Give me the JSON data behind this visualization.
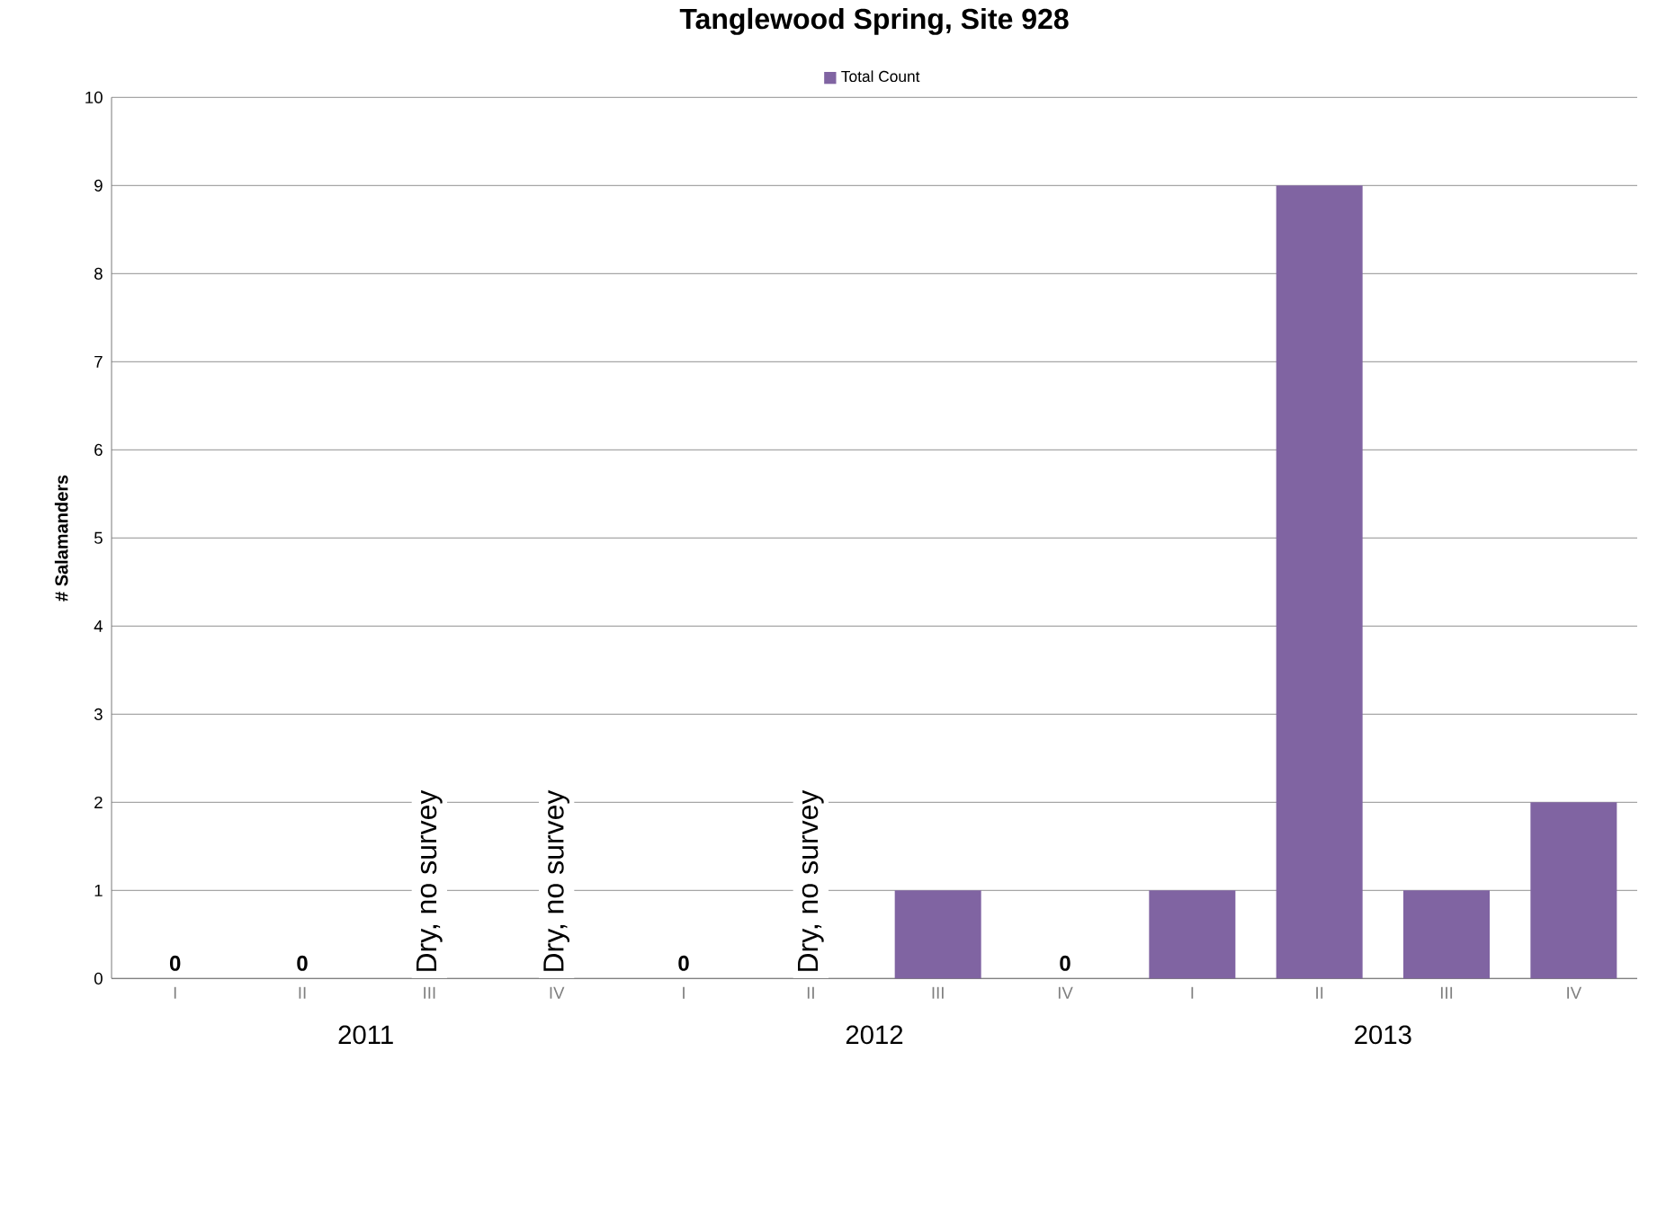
{
  "chart_data": {
    "type": "bar",
    "title": "Tanglewood Spring, Site 928",
    "ylabel": "# Salamanders",
    "categories": [
      "I",
      "II",
      "III",
      "IV",
      "I",
      "II",
      "III",
      "IV",
      "I",
      "II",
      "III",
      "IV"
    ],
    "series": [
      {
        "name": "Total Count",
        "color": "#8064a2",
        "values": [
          0,
          0,
          null,
          null,
          0,
          null,
          1,
          0,
          1,
          9,
          1,
          2
        ],
        "value_labels": [
          "0",
          "0",
          "Dry, no survey",
          "Dry, no survey",
          "0",
          "Dry, no survey",
          null,
          "0",
          null,
          null,
          null,
          null
        ]
      }
    ],
    "ylim": [
      0,
      10
    ],
    "yticks": [
      0,
      1,
      2,
      3,
      4,
      5,
      6,
      7,
      8,
      9,
      10
    ],
    "grid": "y",
    "legend": "top",
    "annotations": [
      "2011",
      "2012",
      "2013"
    ]
  }
}
